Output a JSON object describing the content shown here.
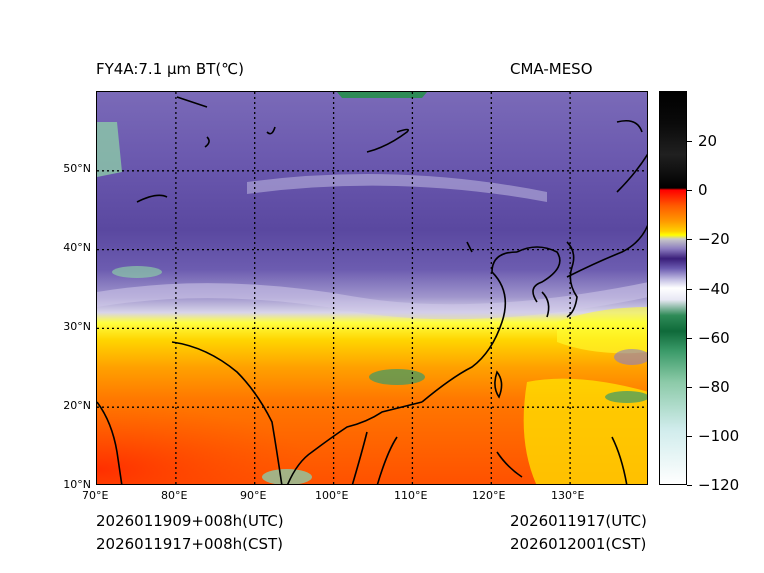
{
  "title_left": "FY4A:7.1 µm BT(℃)",
  "title_right": "CMA-MESO",
  "footer": {
    "init_utc": "2026011909+008h(UTC)",
    "init_cst": "2026011917+008h(CST)",
    "valid_utc": "2026011917(UTC)",
    "valid_cst": "2026012001(CST)"
  },
  "map": {
    "lon_range": [
      70,
      140
    ],
    "lat_range": [
      10,
      60
    ],
    "x_ticks": [
      "70°E",
      "80°E",
      "90°E",
      "100°E",
      "110°E",
      "120°E",
      "130°E"
    ],
    "y_ticks": [
      "10°N",
      "20°N",
      "30°N",
      "40°N",
      "50°N"
    ],
    "grid": "dotted"
  },
  "colorbar": {
    "range": [
      -120,
      40
    ],
    "tick_values": [
      20,
      0,
      -20,
      -40,
      -60,
      -80,
      -100,
      -120
    ],
    "tick_labels": [
      "20",
      "0",
      "−20",
      "−40",
      "−60",
      "−80",
      "−100",
      "−120"
    ]
  }
}
